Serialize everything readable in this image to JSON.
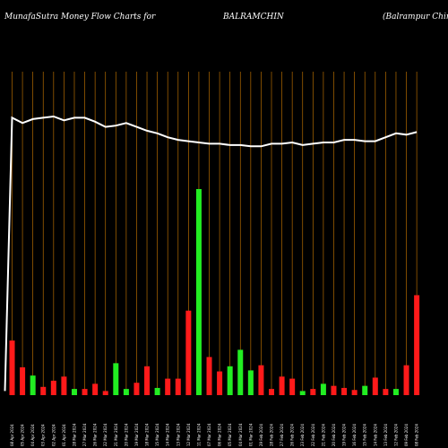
{
  "header": {
    "left": "MunafaSutra  Money Flow  Charts for",
    "symbol": "BALRAMCHIN",
    "company": "(Balrampur Chin"
  },
  "chart_data": {
    "type": "bar",
    "ylim": [
      0,
      100
    ],
    "grid": "vertical",
    "bars": [
      {
        "x": "08 Apr 2024",
        "value": 26.5,
        "color": "red"
      },
      {
        "x": "05 Apr 2024",
        "value": 13.5,
        "color": "red"
      },
      {
        "x": "04 Apr 2024",
        "value": 9.5,
        "color": "green"
      },
      {
        "x": "03 Apr 2024",
        "value": 4.0,
        "color": "red"
      },
      {
        "x": "02 Apr 2024",
        "value": 7.0,
        "color": "red"
      },
      {
        "x": "01 Apr 2024",
        "value": 9.0,
        "color": "red"
      },
      {
        "x": "28 Mar 2024",
        "value": 3.0,
        "color": "green"
      },
      {
        "x": "27 Mar 2024",
        "value": 3.0,
        "color": "red"
      },
      {
        "x": "26 Mar 2024",
        "value": 5.5,
        "color": "red"
      },
      {
        "x": "22 Mar 2024",
        "value": 2.0,
        "color": "red"
      },
      {
        "x": "21 Mar 2024",
        "value": 15.5,
        "color": "green"
      },
      {
        "x": "20 Mar 2024",
        "value": 3.0,
        "color": "green"
      },
      {
        "x": "19 Mar 2024",
        "value": 6.0,
        "color": "red"
      },
      {
        "x": "18 Mar 2024",
        "value": 14.0,
        "color": "red"
      },
      {
        "x": "15 Mar 2024",
        "value": 3.5,
        "color": "green"
      },
      {
        "x": "14 Mar 2024",
        "value": 8.0,
        "color": "red"
      },
      {
        "x": "13 Mar 2024",
        "value": 8.0,
        "color": "red"
      },
      {
        "x": "12 Mar 2024",
        "value": 41.0,
        "color": "red"
      },
      {
        "x": "11 Mar 2024",
        "value": 100.0,
        "color": "green"
      },
      {
        "x": "07 Mar 2024",
        "value": 18.5,
        "color": "red"
      },
      {
        "x": "06 Mar 2024",
        "value": 11.5,
        "color": "red"
      },
      {
        "x": "05 Mar 2024",
        "value": 14.0,
        "color": "green"
      },
      {
        "x": "04 Mar 2024",
        "value": 22.0,
        "color": "green"
      },
      {
        "x": "01 Mar 2024",
        "value": 12.0,
        "color": "green"
      },
      {
        "x": "29 Feb 2024",
        "value": 14.5,
        "color": "red"
      },
      {
        "x": "28 Feb 2024",
        "value": 3.0,
        "color": "red"
      },
      {
        "x": "27 Feb 2024",
        "value": 9.0,
        "color": "red"
      },
      {
        "x": "26 Feb 2024",
        "value": 8.0,
        "color": "red"
      },
      {
        "x": "23 Feb 2024",
        "value": 2.0,
        "color": "green"
      },
      {
        "x": "22 Feb 2024",
        "value": 3.0,
        "color": "red"
      },
      {
        "x": "21 Feb 2024",
        "value": 5.5,
        "color": "green"
      },
      {
        "x": "20 Feb 2024",
        "value": 4.5,
        "color": "red"
      },
      {
        "x": "19 Feb 2024",
        "value": 3.5,
        "color": "red"
      },
      {
        "x": "16 Feb 2024",
        "value": 2.5,
        "color": "red"
      },
      {
        "x": "15 Feb 2024",
        "value": 4.5,
        "color": "green"
      },
      {
        "x": "14 Feb 2024",
        "value": 8.5,
        "color": "red"
      },
      {
        "x": "13 Feb 2024",
        "value": 3.0,
        "color": "red"
      },
      {
        "x": "12 Feb 2024",
        "value": 3.0,
        "color": "green"
      },
      {
        "x": "09 Feb 2024",
        "value": 14.5,
        "color": "red"
      },
      {
        "x": "08 Feb 2024",
        "value": 48.5,
        "color": "red"
      }
    ],
    "price_line": [
      63,
      59,
      62,
      63,
      64,
      61,
      63,
      63,
      60,
      56,
      57,
      59,
      56,
      53,
      51,
      48,
      46,
      45,
      44,
      43,
      43,
      42,
      42,
      41,
      41,
      43,
      43,
      44,
      42,
      43,
      44,
      44,
      46,
      46,
      45,
      45,
      48,
      51,
      50,
      52
    ],
    "line_start": 2
  }
}
